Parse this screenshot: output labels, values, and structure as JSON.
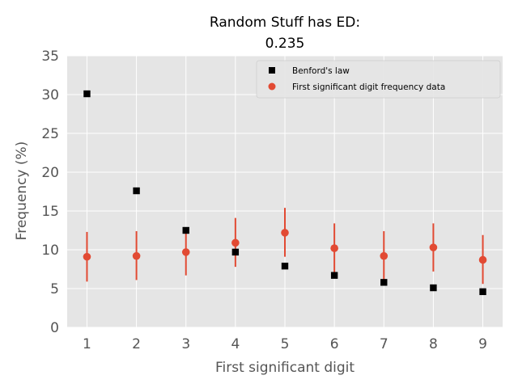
{
  "chart_data": {
    "type": "scatter",
    "title_line1": "Random Stuff has ED:",
    "title_line2": "0.235",
    "xlabel": "First significant digit",
    "ylabel": "Frequency (%)",
    "xlim": [
      0.6,
      9.4
    ],
    "ylim": [
      0,
      35
    ],
    "xticks": [
      "1",
      "2",
      "3",
      "4",
      "5",
      "6",
      "7",
      "8",
      "9"
    ],
    "yticks": [
      "0",
      "5",
      "10",
      "15",
      "20",
      "25",
      "30",
      "35"
    ],
    "grid": true,
    "legend_position": "top-right",
    "x": [
      1,
      2,
      3,
      4,
      5,
      6,
      7,
      8,
      9
    ],
    "series": [
      {
        "name": "Benford's law",
        "marker": "square",
        "color": "#000000",
        "values": [
          30.1,
          17.6,
          12.5,
          9.7,
          7.9,
          6.7,
          5.8,
          5.1,
          4.6
        ]
      },
      {
        "name": "First significant digit frequency data",
        "marker": "circle",
        "color": "#E24A33",
        "values": [
          9.1,
          9.2,
          9.7,
          10.9,
          12.2,
          10.2,
          9.2,
          10.3,
          8.7
        ],
        "error_low": [
          5.9,
          6.1,
          6.7,
          7.8,
          9.1,
          7.1,
          6.2,
          7.2,
          5.6
        ],
        "error_high": [
          12.3,
          12.4,
          12.8,
          14.1,
          15.4,
          13.4,
          12.4,
          13.4,
          11.9
        ]
      }
    ]
  }
}
